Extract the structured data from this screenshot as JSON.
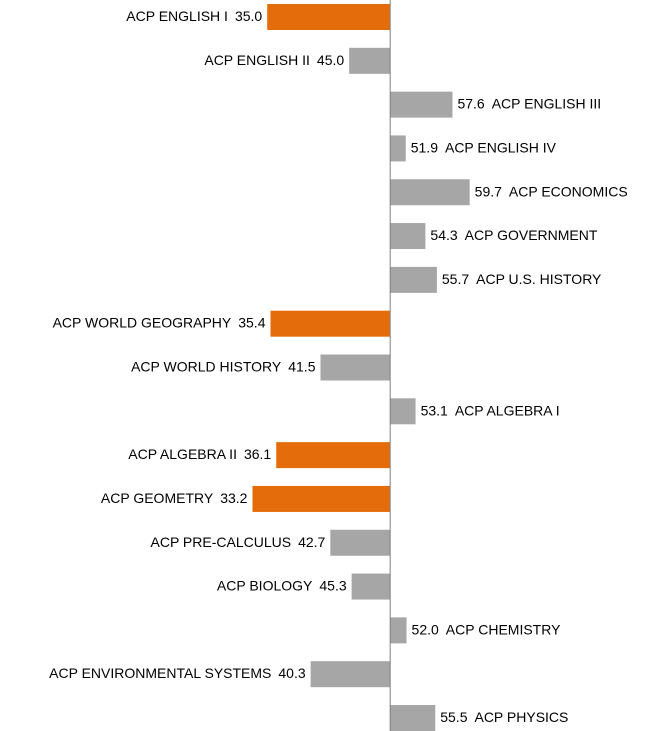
{
  "chart_data": {
    "type": "diverging-bar",
    "categories": [
      "ACP ENGLISH I",
      "ACP ENGLISH II",
      "ACP ENGLISH III",
      "ACP ENGLISH IV",
      "ACP ECONOMICS",
      "ACP GOVERNMENT",
      "ACP U.S. HISTORY",
      "ACP WORLD GEOGRAPHY",
      "ACP WORLD HISTORY",
      "ACP ALGEBRA I",
      "ACP ALGEBRA II",
      "ACP GEOMETRY",
      "ACP PRE-CALCULUS",
      "ACP BIOLOGY",
      "ACP CHEMISTRY",
      "ACP ENVIRONMENTAL SYSTEMS",
      "ACP PHYSICS"
    ],
    "values": [
      35.0,
      45.0,
      57.6,
      51.9,
      59.7,
      54.3,
      55.7,
      35.4,
      41.5,
      53.1,
      36.1,
      33.2,
      42.7,
      45.3,
      52.0,
      40.3,
      55.5
    ],
    "value_labels": [
      "35.0",
      "45.0",
      "57.6",
      "51.9",
      "59.7",
      "54.3",
      "55.7",
      "35.4",
      "41.5",
      "53.1",
      "36.1",
      "33.2",
      "42.7",
      "45.3",
      "52.0",
      "40.3",
      "55.5"
    ],
    "colors": [
      "#e46c0a",
      "#a6a6a6",
      "#a6a6a6",
      "#a6a6a6",
      "#a6a6a6",
      "#a6a6a6",
      "#a6a6a6",
      "#e46c0a",
      "#a6a6a6",
      "#a6a6a6",
      "#e46c0a",
      "#e46c0a",
      "#a6a6a6",
      "#a6a6a6",
      "#a6a6a6",
      "#a6a6a6",
      "#a6a6a6"
    ],
    "baseline": 50,
    "xlim": [
      2.4,
      81.7
    ]
  }
}
